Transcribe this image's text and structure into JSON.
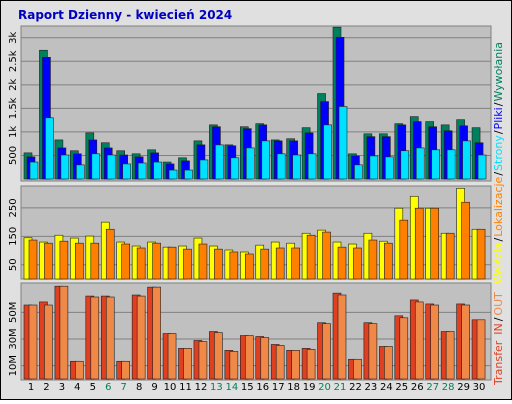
{
  "chart_data": [
    {
      "type": "bar",
      "title": "Raport Dzienny -  kwiecień 2024",
      "ylim": [
        0,
        3250
      ],
      "yticks": [
        500,
        {
          "value": 1000,
          "label": "1k"
        },
        {
          "value": 1500,
          "label": "1.5k"
        },
        {
          "value": 2000,
          "label": "2k"
        },
        {
          "value": 2500,
          "label": "2.5k"
        },
        {
          "value": 3000,
          "label": "3k"
        }
      ],
      "legend_separator": "/",
      "series": [
        {
          "name": "Wywołania",
          "color": "#00805c",
          "values": [
            555,
            2735,
            830,
            600,
            980,
            770,
            600,
            535,
            620,
            360,
            450,
            810,
            1150,
            725,
            1110,
            1175,
            830,
            855,
            1090,
            1815,
            3225,
            535,
            960,
            960,
            1175,
            1325,
            1220,
            1150,
            1260,
            1090
          ]
        },
        {
          "name": "Pliki",
          "color": "#0000ff",
          "values": [
            470,
            2585,
            660,
            535,
            830,
            660,
            510,
            470,
            555,
            320,
            385,
            725,
            1110,
            705,
            1070,
            1150,
            810,
            810,
            980,
            1645,
            3010,
            490,
            900,
            900,
            1150,
            1220,
            1110,
            1025,
            1130,
            770
          ]
        },
        {
          "name": "Strony",
          "color": "#00e0ff",
          "values": [
            360,
            1300,
            510,
            300,
            535,
            510,
            320,
            340,
            360,
            190,
            190,
            405,
            725,
            450,
            660,
            810,
            535,
            510,
            535,
            1150,
            1540,
            300,
            490,
            470,
            600,
            660,
            620,
            620,
            810,
            510
          ]
        }
      ]
    },
    {
      "type": "bar",
      "ylim": [
        0,
        325
      ],
      "yticks": [
        50,
        150,
        250
      ],
      "series": [
        {
          "name": "Wejścia",
          "color": "#ffff00",
          "values": [
            145,
            130,
            154,
            144,
            151,
            200,
            130,
            116,
            130,
            112,
            116,
            144,
            116,
            102,
            95,
            119,
            130,
            126,
            161,
            172,
            130,
            123,
            161,
            133,
            249,
            291,
            249,
            161,
            319,
            175
          ]
        },
        {
          "name": "Lokalizacje",
          "color": "#ff8000",
          "values": [
            137,
            126,
            133,
            126,
            126,
            175,
            123,
            109,
            126,
            112,
            105,
            123,
            105,
            95,
            88,
            105,
            109,
            109,
            154,
            165,
            112,
            109,
            137,
            126,
            207,
            249,
            249,
            161,
            270,
            175
          ]
        }
      ]
    },
    {
      "type": "bar",
      "ylabel": "Transfer",
      "ylim": [
        0,
        72
      ],
      "yticks": [
        {
          "value": 10,
          "label": "10M"
        },
        {
          "value": 30,
          "label": "30M"
        },
        {
          "value": 50,
          "label": "50M"
        }
      ],
      "categories": [
        "1",
        "2",
        "3",
        "4",
        "5",
        "6",
        "7",
        "8",
        "9",
        "10",
        "11",
        "12",
        "13",
        "14",
        "15",
        "16",
        "17",
        "18",
        "19",
        "20",
        "21",
        "22",
        "23",
        "24",
        "25",
        "26",
        "27",
        "28",
        "29",
        "30"
      ],
      "category_colors": [
        "#000000",
        "#000000",
        "#000000",
        "#000000",
        "#000000",
        "#00805c",
        "#00805c",
        "#000000",
        "#000000",
        "#000000",
        "#000000",
        "#000000",
        "#00805c",
        "#00805c",
        "#000000",
        "#000000",
        "#000000",
        "#000000",
        "#000000",
        "#00805c",
        "#00805c",
        "#000000",
        "#000000",
        "#000000",
        "#000000",
        "#000000",
        "#00805c",
        "#00805c",
        "#000000",
        "#000000"
      ],
      "series": [
        {
          "name": "IN",
          "color": "#e04020",
          "values": [
            55.5,
            57.8,
            69.6,
            13.3,
            62.2,
            62.2,
            13.3,
            63,
            68.9,
            34.1,
            23,
            28.9,
            35.6,
            21.5,
            32.6,
            31.9,
            25.9,
            21.5,
            23,
            42.2,
            64.4,
            14.8,
            42.2,
            24.4,
            47.4,
            59.3,
            56.3,
            35.6,
            56.3,
            44.4
          ]
        },
        {
          "name": "OUT",
          "color": "#f08848",
          "values": [
            55.5,
            55.5,
            69.6,
            13.3,
            61.5,
            61.5,
            13.3,
            62.2,
            68.9,
            34.1,
            23,
            28.1,
            34.8,
            20.7,
            32.6,
            31.1,
            25.2,
            21.5,
            22.2,
            41.5,
            63,
            14.8,
            41.5,
            24.4,
            45.9,
            57.8,
            55.5,
            35.6,
            55.5,
            44.4
          ]
        }
      ]
    }
  ]
}
